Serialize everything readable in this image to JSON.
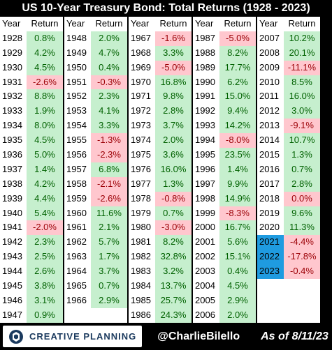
{
  "title": "US 10-Year Treasury Bond: Total Returns (1928 - 2023)",
  "headers": {
    "year": "Year",
    "return": "Return"
  },
  "columns": [
    {
      "rows": [
        {
          "year": "1928",
          "value": "0.8%",
          "sign": "pos"
        },
        {
          "year": "1929",
          "value": "4.2%",
          "sign": "pos"
        },
        {
          "year": "1930",
          "value": "4.5%",
          "sign": "pos"
        },
        {
          "year": "1931",
          "value": "-2.6%",
          "sign": "neg"
        },
        {
          "year": "1932",
          "value": "8.8%",
          "sign": "pos"
        },
        {
          "year": "1933",
          "value": "1.9%",
          "sign": "pos"
        },
        {
          "year": "1934",
          "value": "8.0%",
          "sign": "pos"
        },
        {
          "year": "1935",
          "value": "4.5%",
          "sign": "pos"
        },
        {
          "year": "1936",
          "value": "5.0%",
          "sign": "pos"
        },
        {
          "year": "1937",
          "value": "1.4%",
          "sign": "pos"
        },
        {
          "year": "1938",
          "value": "4.2%",
          "sign": "pos"
        },
        {
          "year": "1939",
          "value": "4.4%",
          "sign": "pos"
        },
        {
          "year": "1940",
          "value": "5.4%",
          "sign": "pos"
        },
        {
          "year": "1941",
          "value": "-2.0%",
          "sign": "neg"
        },
        {
          "year": "1942",
          "value": "2.3%",
          "sign": "pos"
        },
        {
          "year": "1943",
          "value": "2.5%",
          "sign": "pos"
        },
        {
          "year": "1944",
          "value": "2.6%",
          "sign": "pos"
        },
        {
          "year": "1945",
          "value": "3.8%",
          "sign": "pos"
        },
        {
          "year": "1946",
          "value": "3.1%",
          "sign": "pos"
        },
        {
          "year": "1947",
          "value": "0.9%",
          "sign": "pos"
        }
      ]
    },
    {
      "rows": [
        {
          "year": "1948",
          "value": "2.0%",
          "sign": "pos"
        },
        {
          "year": "1949",
          "value": "4.7%",
          "sign": "pos"
        },
        {
          "year": "1950",
          "value": "0.4%",
          "sign": "pos"
        },
        {
          "year": "1951",
          "value": "-0.3%",
          "sign": "neg"
        },
        {
          "year": "1952",
          "value": "2.3%",
          "sign": "pos"
        },
        {
          "year": "1953",
          "value": "4.1%",
          "sign": "pos"
        },
        {
          "year": "1954",
          "value": "3.3%",
          "sign": "pos"
        },
        {
          "year": "1955",
          "value": "-1.3%",
          "sign": "neg"
        },
        {
          "year": "1956",
          "value": "-2.3%",
          "sign": "neg"
        },
        {
          "year": "1957",
          "value": "6.8%",
          "sign": "pos"
        },
        {
          "year": "1958",
          "value": "-2.1%",
          "sign": "neg"
        },
        {
          "year": "1959",
          "value": "-2.6%",
          "sign": "neg"
        },
        {
          "year": "1960",
          "value": "11.6%",
          "sign": "pos"
        },
        {
          "year": "1961",
          "value": "2.1%",
          "sign": "pos"
        },
        {
          "year": "1962",
          "value": "5.7%",
          "sign": "pos"
        },
        {
          "year": "1963",
          "value": "1.7%",
          "sign": "pos"
        },
        {
          "year": "1964",
          "value": "3.7%",
          "sign": "pos"
        },
        {
          "year": "1965",
          "value": "0.7%",
          "sign": "pos"
        },
        {
          "year": "1966",
          "value": "2.9%",
          "sign": "pos"
        }
      ]
    },
    {
      "rows": [
        {
          "year": "1967",
          "value": "-1.6%",
          "sign": "neg"
        },
        {
          "year": "1968",
          "value": "3.3%",
          "sign": "pos"
        },
        {
          "year": "1969",
          "value": "-5.0%",
          "sign": "neg"
        },
        {
          "year": "1970",
          "value": "16.8%",
          "sign": "pos"
        },
        {
          "year": "1971",
          "value": "9.8%",
          "sign": "pos"
        },
        {
          "year": "1972",
          "value": "2.8%",
          "sign": "pos"
        },
        {
          "year": "1973",
          "value": "3.7%",
          "sign": "pos"
        },
        {
          "year": "1974",
          "value": "2.0%",
          "sign": "pos"
        },
        {
          "year": "1975",
          "value": "3.6%",
          "sign": "pos"
        },
        {
          "year": "1976",
          "value": "16.0%",
          "sign": "pos"
        },
        {
          "year": "1977",
          "value": "1.3%",
          "sign": "pos"
        },
        {
          "year": "1978",
          "value": "-0.8%",
          "sign": "neg"
        },
        {
          "year": "1979",
          "value": "0.7%",
          "sign": "pos"
        },
        {
          "year": "1980",
          "value": "-3.0%",
          "sign": "neg"
        },
        {
          "year": "1981",
          "value": "8.2%",
          "sign": "pos"
        },
        {
          "year": "1982",
          "value": "32.8%",
          "sign": "pos"
        },
        {
          "year": "1983",
          "value": "3.2%",
          "sign": "pos"
        },
        {
          "year": "1984",
          "value": "13.7%",
          "sign": "pos"
        },
        {
          "year": "1985",
          "value": "25.7%",
          "sign": "pos"
        },
        {
          "year": "1986",
          "value": "24.3%",
          "sign": "pos"
        }
      ]
    },
    {
      "rows": [
        {
          "year": "1987",
          "value": "-5.0%",
          "sign": "neg"
        },
        {
          "year": "1988",
          "value": "8.2%",
          "sign": "pos"
        },
        {
          "year": "1989",
          "value": "17.7%",
          "sign": "pos"
        },
        {
          "year": "1990",
          "value": "6.2%",
          "sign": "pos"
        },
        {
          "year": "1991",
          "value": "15.0%",
          "sign": "pos"
        },
        {
          "year": "1992",
          "value": "9.4%",
          "sign": "pos"
        },
        {
          "year": "1993",
          "value": "14.2%",
          "sign": "pos"
        },
        {
          "year": "1994",
          "value": "-8.0%",
          "sign": "neg"
        },
        {
          "year": "1995",
          "value": "23.5%",
          "sign": "pos"
        },
        {
          "year": "1996",
          "value": "1.4%",
          "sign": "pos"
        },
        {
          "year": "1997",
          "value": "9.9%",
          "sign": "pos"
        },
        {
          "year": "1998",
          "value": "14.9%",
          "sign": "pos"
        },
        {
          "year": "1999",
          "value": "-8.3%",
          "sign": "neg"
        },
        {
          "year": "2000",
          "value": "16.7%",
          "sign": "pos"
        },
        {
          "year": "2001",
          "value": "5.6%",
          "sign": "pos"
        },
        {
          "year": "2002",
          "value": "15.1%",
          "sign": "pos"
        },
        {
          "year": "2003",
          "value": "0.4%",
          "sign": "pos"
        },
        {
          "year": "2004",
          "value": "4.5%",
          "sign": "pos"
        },
        {
          "year": "2005",
          "value": "2.9%",
          "sign": "pos"
        },
        {
          "year": "2006",
          "value": "2.0%",
          "sign": "pos"
        }
      ]
    },
    {
      "rows": [
        {
          "year": "2007",
          "value": "10.2%",
          "sign": "pos"
        },
        {
          "year": "2008",
          "value": "20.1%",
          "sign": "pos"
        },
        {
          "year": "2009",
          "value": "-11.1%",
          "sign": "neg"
        },
        {
          "year": "2010",
          "value": "8.5%",
          "sign": "pos"
        },
        {
          "year": "2011",
          "value": "16.0%",
          "sign": "pos"
        },
        {
          "year": "2012",
          "value": "3.0%",
          "sign": "pos"
        },
        {
          "year": "2013",
          "value": "-9.1%",
          "sign": "neg"
        },
        {
          "year": "2014",
          "value": "10.7%",
          "sign": "pos"
        },
        {
          "year": "2015",
          "value": "1.3%",
          "sign": "pos"
        },
        {
          "year": "2016",
          "value": "0.7%",
          "sign": "pos"
        },
        {
          "year": "2017",
          "value": "2.8%",
          "sign": "pos"
        },
        {
          "year": "2018",
          "value": "0.0%",
          "sign": "neg"
        },
        {
          "year": "2019",
          "value": "9.6%",
          "sign": "pos"
        },
        {
          "year": "2020",
          "value": "11.3%",
          "sign": "pos"
        },
        {
          "year": "2021",
          "value": "-4.4%",
          "sign": "neg",
          "highlight": true
        },
        {
          "year": "2022",
          "value": "-17.8%",
          "sign": "neg",
          "highlight": true
        },
        {
          "year": "2023",
          "value": "-0.4%",
          "sign": "neg",
          "highlight": true
        }
      ]
    }
  ],
  "footer": {
    "brand": "CREATIVE PLANNING",
    "handle": "@CharlieBilello",
    "as_of": "As of 8/11/23"
  },
  "colors": {
    "positive_fill": "#c6efce",
    "positive_text": "#006100",
    "negative_fill": "#ffc7ce",
    "negative_text": "#9c0006",
    "highlight": "#1f9be0",
    "brand_navy": "#1b3a5e"
  }
}
